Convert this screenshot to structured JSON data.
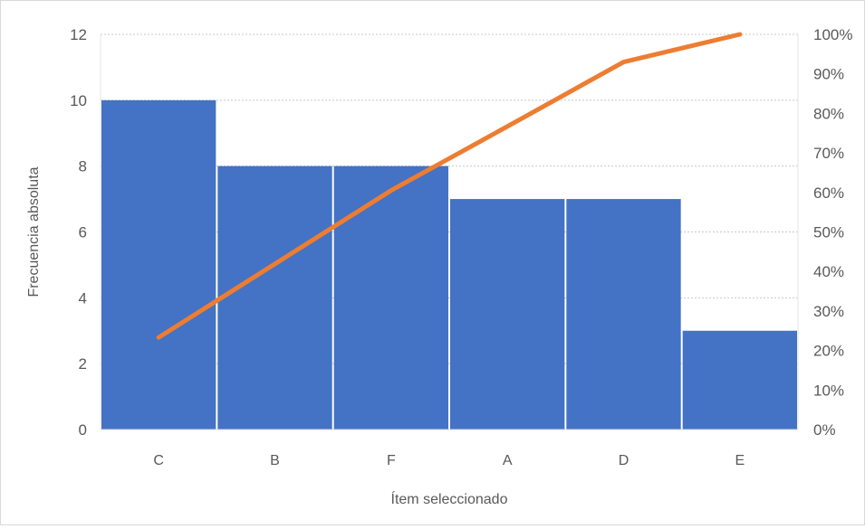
{
  "chart_data": {
    "type": "bar",
    "categories": [
      "C",
      "B",
      "F",
      "A",
      "D",
      "E"
    ],
    "series": [
      {
        "type": "bar",
        "values": [
          10,
          8,
          8,
          7,
          7,
          3
        ],
        "color": "#4472C4"
      },
      {
        "type": "line",
        "axis": "right",
        "values": [
          23.3,
          41.9,
          60.5,
          76.7,
          93.0,
          100.0
        ],
        "color": "#ED7D31"
      }
    ],
    "xlabel": "Ítem seleccionado",
    "ylabel": "Frecuencia absoluta",
    "ylim": [
      0,
      12
    ],
    "yticks": [
      "0",
      "2",
      "4",
      "6",
      "8",
      "10",
      "12"
    ],
    "y2lim": [
      0,
      100
    ],
    "y2ticks": [
      "0%",
      "10%",
      "20%",
      "30%",
      "40%",
      "50%",
      "60%",
      "70%",
      "80%",
      "90%",
      "100%"
    ],
    "grid": true,
    "legend": "none"
  }
}
